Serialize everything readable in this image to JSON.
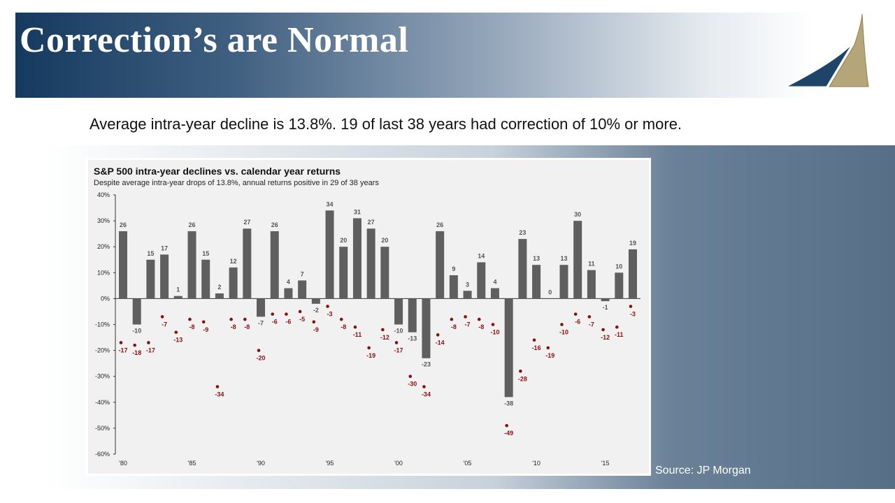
{
  "header": {
    "title": "Correction’s are Normal"
  },
  "subtitle": "Average intra-year decline is 13.8%. 19 of last 38 years had correction of 10% or more.",
  "source": "Source: JP Morgan",
  "colors": {
    "bar": "#5f5f5f",
    "dot": "#8b0e0e",
    "banner_dark": "#153a5f",
    "logo_blue": "#1e4468",
    "logo_gold": "#b5a67a"
  },
  "chart_data": {
    "type": "bar",
    "title": "S&P 500 intra-year declines vs. calendar year returns",
    "subtitle": "Despite average intra-year drops of 13.8%, annual returns positive in 29 of 38 years",
    "ylim": [
      -60,
      40
    ],
    "yticks": [
      "40%",
      "30%",
      "20%",
      "10%",
      "0%",
      "-10%",
      "-20%",
      "-30%",
      "-40%",
      "-50%",
      "-60%"
    ],
    "ytick_values": [
      40,
      30,
      20,
      10,
      0,
      -10,
      -20,
      -30,
      -40,
      -50,
      -60
    ],
    "years": [
      1980,
      1981,
      1982,
      1983,
      1984,
      1985,
      1986,
      1987,
      1988,
      1989,
      1990,
      1991,
      1992,
      1993,
      1994,
      1995,
      1996,
      1997,
      1998,
      1999,
      2000,
      2001,
      2002,
      2003,
      2004,
      2005,
      2006,
      2007,
      2008,
      2009,
      2010,
      2011,
      2012,
      2013,
      2014,
      2015,
      2016,
      2017
    ],
    "xtick_labels": {
      "1980": "'80",
      "1985": "'85",
      "1990": "'90",
      "1995": "'95",
      "2000": "'00",
      "2005": "'05",
      "2010": "'10",
      "2015": "'15"
    },
    "series": [
      {
        "type": "bar",
        "values": [
          26,
          -10,
          15,
          17,
          1,
          26,
          15,
          2,
          12,
          27,
          -7,
          26,
          4,
          7,
          -2,
          34,
          20,
          31,
          27,
          20,
          -10,
          -13,
          -23,
          26,
          9,
          3,
          14,
          4,
          -38,
          23,
          13,
          0,
          13,
          30,
          11,
          -1,
          10,
          19
        ]
      },
      {
        "type": "scatter",
        "values": [
          -17,
          -18,
          -17,
          -7,
          -13,
          -8,
          -9,
          -34,
          -8,
          -8,
          -20,
          -6,
          -6,
          -5,
          -9,
          -3,
          -8,
          -11,
          -19,
          -12,
          -17,
          -30,
          -34,
          -14,
          -8,
          -7,
          -8,
          -10,
          -49,
          -28,
          -16,
          -19,
          -10,
          -6,
          -7,
          -12,
          -11,
          -3
        ]
      }
    ]
  }
}
